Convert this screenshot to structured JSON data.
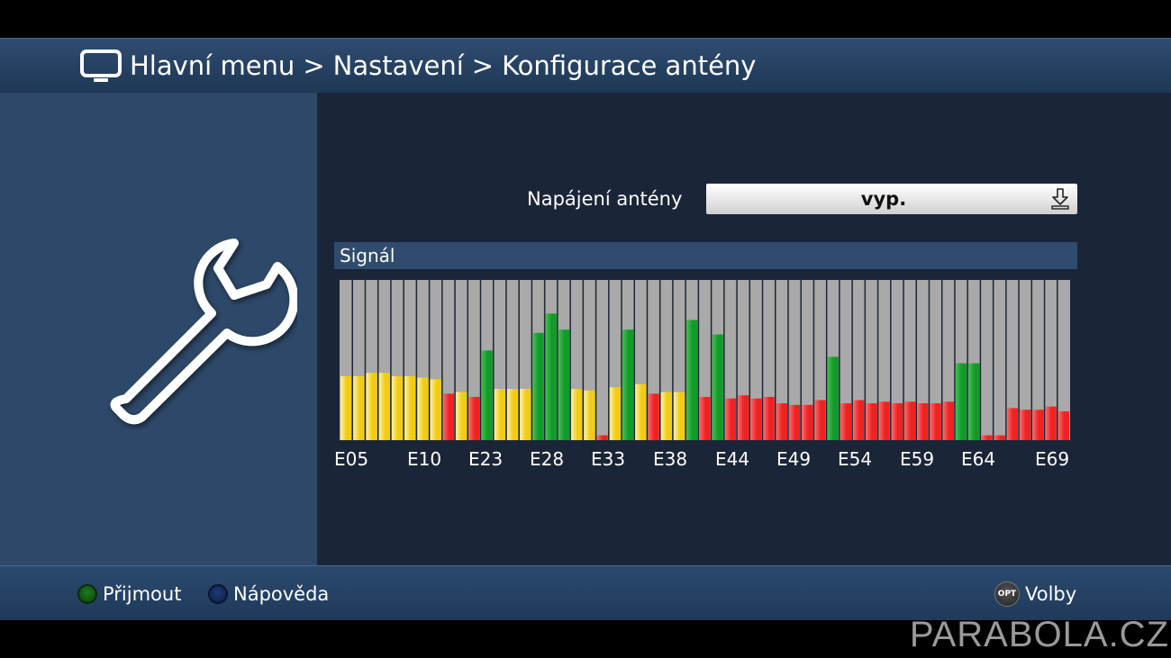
{
  "header": {
    "breadcrumb": [
      "Hlavní menu",
      "Nastavení",
      "Konfigurace antény"
    ],
    "separator": ">"
  },
  "settings": {
    "power_label": "Napájení antény",
    "power_value": "vyp."
  },
  "signal": {
    "title": "Signál"
  },
  "chart_data": {
    "type": "bar",
    "x_tick_labels": [
      "E05",
      "E10",
      "E23",
      "E28",
      "E33",
      "E38",
      "E44",
      "E49",
      "E54",
      "E59",
      "E64",
      "E69"
    ],
    "ylim": [
      0,
      100
    ],
    "status_colors": {
      "yellow": "#f2cc14",
      "red": "#ee2222",
      "green": "#129a2a"
    },
    "bars": [
      {
        "value": 40,
        "status": "yellow"
      },
      {
        "value": 40,
        "status": "yellow"
      },
      {
        "value": 42,
        "status": "yellow"
      },
      {
        "value": 42,
        "status": "yellow"
      },
      {
        "value": 40,
        "status": "yellow"
      },
      {
        "value": 40,
        "status": "yellow"
      },
      {
        "value": 39,
        "status": "yellow"
      },
      {
        "value": 38,
        "status": "yellow"
      },
      {
        "value": 29,
        "status": "red"
      },
      {
        "value": 30,
        "status": "yellow"
      },
      {
        "value": 27,
        "status": "red"
      },
      {
        "value": 56,
        "status": "green"
      },
      {
        "value": 32,
        "status": "yellow"
      },
      {
        "value": 32,
        "status": "yellow"
      },
      {
        "value": 32,
        "status": "yellow"
      },
      {
        "value": 67,
        "status": "green"
      },
      {
        "value": 79,
        "status": "green"
      },
      {
        "value": 69,
        "status": "green"
      },
      {
        "value": 32,
        "status": "yellow"
      },
      {
        "value": 31,
        "status": "yellow"
      },
      {
        "value": 3,
        "status": "red"
      },
      {
        "value": 33,
        "status": "yellow"
      },
      {
        "value": 69,
        "status": "green"
      },
      {
        "value": 35,
        "status": "yellow"
      },
      {
        "value": 29,
        "status": "red"
      },
      {
        "value": 30,
        "status": "yellow"
      },
      {
        "value": 30,
        "status": "yellow"
      },
      {
        "value": 75,
        "status": "green"
      },
      {
        "value": 27,
        "status": "red"
      },
      {
        "value": 66,
        "status": "green"
      },
      {
        "value": 26,
        "status": "red"
      },
      {
        "value": 28,
        "status": "red"
      },
      {
        "value": 26,
        "status": "red"
      },
      {
        "value": 27,
        "status": "red"
      },
      {
        "value": 23,
        "status": "red"
      },
      {
        "value": 22,
        "status": "red"
      },
      {
        "value": 22,
        "status": "red"
      },
      {
        "value": 25,
        "status": "red"
      },
      {
        "value": 52,
        "status": "green"
      },
      {
        "value": 23,
        "status": "red"
      },
      {
        "value": 25,
        "status": "red"
      },
      {
        "value": 23,
        "status": "red"
      },
      {
        "value": 24,
        "status": "red"
      },
      {
        "value": 23,
        "status": "red"
      },
      {
        "value": 24,
        "status": "red"
      },
      {
        "value": 23,
        "status": "red"
      },
      {
        "value": 23,
        "status": "red"
      },
      {
        "value": 24,
        "status": "red"
      },
      {
        "value": 48,
        "status": "green"
      },
      {
        "value": 48,
        "status": "green"
      },
      {
        "value": 3,
        "status": "red"
      },
      {
        "value": 3,
        "status": "red"
      },
      {
        "value": 20,
        "status": "red"
      },
      {
        "value": 19,
        "status": "red"
      },
      {
        "value": 19,
        "status": "red"
      },
      {
        "value": 21,
        "status": "red"
      },
      {
        "value": 18,
        "status": "red"
      }
    ]
  },
  "footer": {
    "accept_label": "Přijmout",
    "help_label": "Nápověda",
    "opt_badge": "OPT",
    "options_label": "Volby"
  },
  "watermark": "PARABOLA.CZ"
}
